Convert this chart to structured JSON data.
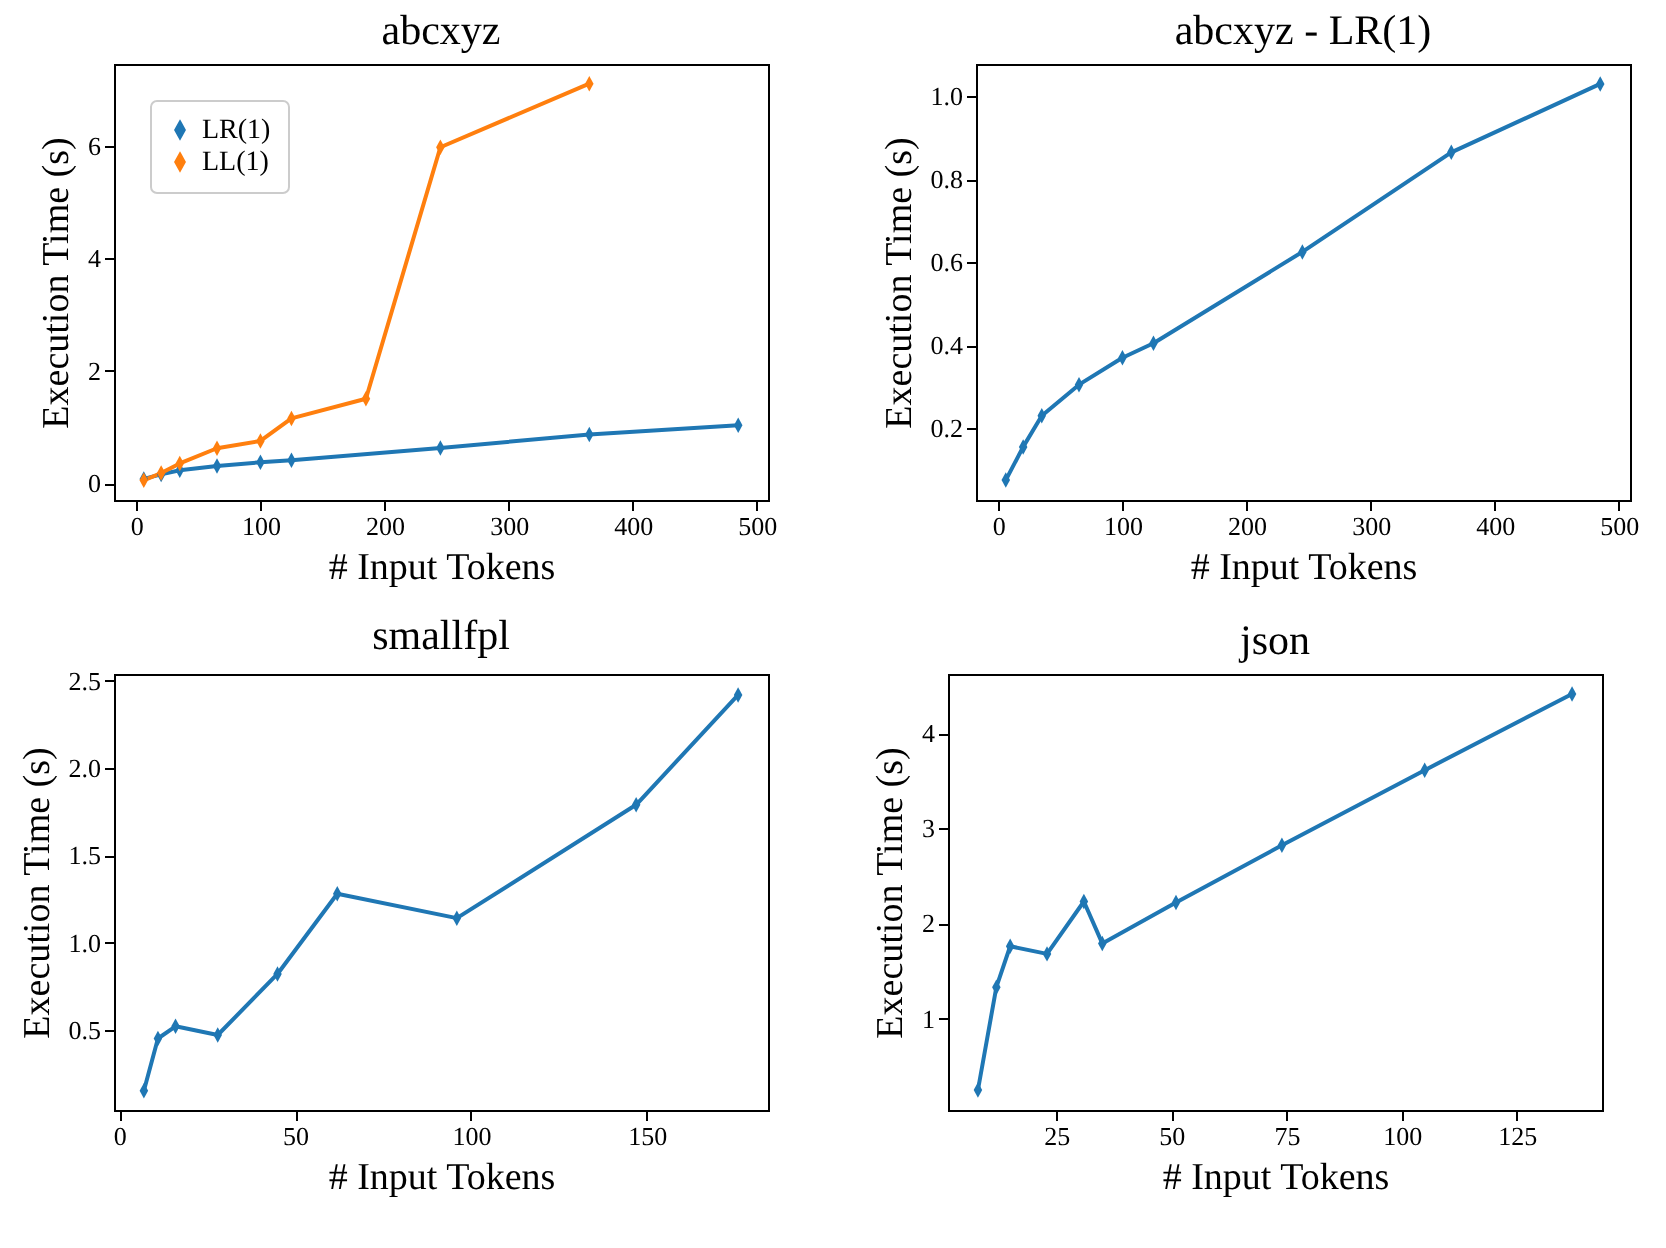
{
  "chart_data": [
    {
      "type": "line",
      "title": "abcxyz",
      "xlabel": "# Input Tokens",
      "ylabel": "Execution Time (s)",
      "marker": "diamond",
      "legend": "top left",
      "grid": false,
      "xlim": [
        -18,
        509
      ],
      "xticks": [
        0,
        100,
        200,
        300,
        400,
        500
      ],
      "ylim": [
        -0.3,
        7.45
      ],
      "yticks": [
        0,
        2,
        4,
        6
      ],
      "series": [
        {
          "name": "LR(1)",
          "color": "#1f77b4",
          "x": [
            6,
            20,
            35,
            65,
            100,
            125,
            245,
            365,
            485
          ],
          "values": [
            0.075,
            0.155,
            0.23,
            0.305,
            0.37,
            0.405,
            0.625,
            0.865,
            1.03
          ]
        },
        {
          "name": "LL(1)",
          "color": "#ff7f0e",
          "x": [
            6,
            20,
            35,
            65,
            100,
            125,
            185,
            245,
            365
          ],
          "values": [
            0.05,
            0.18,
            0.35,
            0.62,
            0.75,
            1.15,
            1.5,
            5.97,
            7.1
          ]
        }
      ]
    },
    {
      "type": "line",
      "title": "abcxyz - LR(1)",
      "xlabel": "# Input Tokens",
      "ylabel": "Execution Time (s)",
      "marker": "diamond",
      "grid": false,
      "xlim": [
        -18,
        509
      ],
      "xticks": [
        0,
        100,
        200,
        300,
        400,
        500
      ],
      "ylim": [
        0.027,
        1.078
      ],
      "yticks": [
        {
          "value": 0.2,
          "label": "0.2"
        },
        {
          "value": 0.4,
          "label": "0.4"
        },
        {
          "value": 0.6,
          "label": "0.6"
        },
        {
          "value": 0.8,
          "label": "0.8"
        },
        {
          "value": 1,
          "label": "1.0"
        }
      ],
      "series": [
        {
          "color": "#1f77b4",
          "x": [
            6,
            20,
            35,
            65,
            100,
            125,
            245,
            365,
            485
          ],
          "values": [
            0.075,
            0.155,
            0.23,
            0.305,
            0.37,
            0.405,
            0.625,
            0.865,
            1.03
          ]
        }
      ]
    },
    {
      "type": "line",
      "title": "smallfpl",
      "xlabel": "# Input Tokens",
      "ylabel": "Execution Time (s)",
      "marker": "diamond",
      "grid": false,
      "xlim": [
        -1.5,
        184.5
      ],
      "xticks": [
        0,
        50,
        100,
        150
      ],
      "ylim": [
        0.04,
        2.54
      ],
      "yticks": [
        {
          "value": 0.5,
          "label": "0.5"
        },
        {
          "value": 1,
          "label": "1.0"
        },
        {
          "value": 1.5,
          "label": "1.5"
        },
        {
          "value": 2,
          "label": "2.0"
        },
        {
          "value": 2.5,
          "label": "2.5"
        }
      ],
      "series": [
        {
          "color": "#1f77b4",
          "x": [
            7,
            11,
            16,
            28,
            45,
            62,
            96,
            147,
            176
          ],
          "values": [
            0.15,
            0.45,
            0.52,
            0.47,
            0.82,
            1.28,
            1.14,
            1.79,
            2.42
          ]
        }
      ]
    },
    {
      "type": "line",
      "title": "json",
      "xlabel": "# Input Tokens",
      "ylabel": "Execution Time (s)",
      "marker": "diamond",
      "grid": false,
      "xlim": [
        1.5,
        143.5
      ],
      "xticks": [
        25,
        50,
        75,
        100,
        125
      ],
      "ylim": [
        0.04,
        4.62
      ],
      "yticks": [
        1,
        2,
        3,
        4
      ],
      "series": [
        {
          "color": "#1f77b4",
          "x": [
            8,
            12,
            15,
            23,
            31,
            35,
            51,
            74,
            105,
            137
          ],
          "values": [
            0.25,
            1.33,
            1.76,
            1.68,
            2.23,
            1.79,
            2.22,
            2.82,
            3.61,
            4.41
          ]
        }
      ]
    }
  ]
}
